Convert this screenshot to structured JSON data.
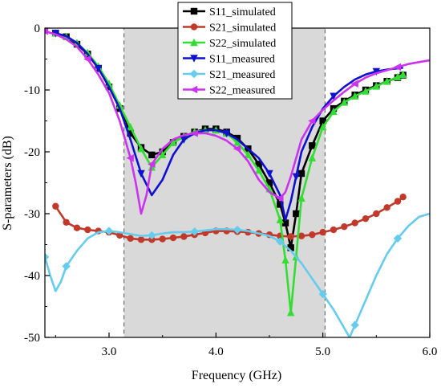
{
  "chart_data": {
    "type": "line",
    "xlabel": "Frequency (GHz)",
    "ylabel": "S-parameters (dB)",
    "xlim": [
      2.4,
      6.0
    ],
    "ylim": [
      -50,
      0
    ],
    "xticks": [
      3.0,
      4.0,
      5.0,
      6.0
    ],
    "xtick_labels": [
      "3.0",
      "4.0",
      "5.0",
      "6.0"
    ],
    "yticks": [
      0,
      -10,
      -20,
      -30,
      -40,
      -50
    ],
    "ytick_labels": [
      "0",
      "-10",
      "-20",
      "-30",
      "-40",
      "-50"
    ],
    "grid": false,
    "legend_position": "top-center",
    "shaded_band": {
      "x_range": [
        3.14,
        5.02
      ],
      "color": "#d9d9d9",
      "border": "dashed"
    },
    "series": [
      {
        "name": "S11_simulated",
        "color": "#000000",
        "marker": "square",
        "x": [
          2.5,
          2.6,
          2.7,
          2.8,
          2.9,
          3.0,
          3.1,
          3.2,
          3.3,
          3.4,
          3.5,
          3.6,
          3.7,
          3.8,
          3.9,
          4.0,
          4.1,
          4.2,
          4.3,
          4.4,
          4.5,
          4.6,
          4.65,
          4.7,
          4.75,
          4.8,
          4.9,
          5.0,
          5.1,
          5.2,
          5.3,
          5.4,
          5.5,
          5.6,
          5.7,
          5.75
        ],
        "y": [
          -0.8,
          -1.4,
          -2.6,
          -4.2,
          -6.5,
          -9.5,
          -13,
          -17,
          -19.3,
          -20.5,
          -20,
          -18.5,
          -17.5,
          -16.8,
          -16.3,
          -16.3,
          -16.8,
          -17.8,
          -19.5,
          -22,
          -25,
          -28.5,
          -31.5,
          -35.5,
          -30,
          -23.5,
          -19,
          -15,
          -13,
          -11.8,
          -10.8,
          -10,
          -9.3,
          -8.6,
          -8,
          -7.6
        ]
      },
      {
        "name": "S21_simulated",
        "color": "#c0392b",
        "marker": "circle",
        "x": [
          2.5,
          2.6,
          2.7,
          2.8,
          2.9,
          3.0,
          3.1,
          3.2,
          3.3,
          3.4,
          3.5,
          3.6,
          3.7,
          3.8,
          3.9,
          4.0,
          4.1,
          4.2,
          4.3,
          4.4,
          4.5,
          4.6,
          4.7,
          4.8,
          4.9,
          5.0,
          5.1,
          5.2,
          5.3,
          5.4,
          5.5,
          5.6,
          5.7,
          5.75
        ],
        "y": [
          -28.8,
          -31.4,
          -32.3,
          -32.6,
          -32.8,
          -33,
          -33.5,
          -34,
          -34.2,
          -34.2,
          -34.1,
          -33.9,
          -33.7,
          -33.4,
          -33.1,
          -32.8,
          -32.8,
          -32.9,
          -33,
          -33.2,
          -33.4,
          -33.6,
          -33.7,
          -33.6,
          -33.4,
          -33,
          -32.6,
          -32.1,
          -31.5,
          -30.8,
          -30,
          -29,
          -28,
          -27.3
        ]
      },
      {
        "name": "S22_simulated",
        "color": "#33dd33",
        "marker": "triangle-up",
        "x": [
          2.5,
          2.6,
          2.7,
          2.8,
          2.9,
          3.0,
          3.1,
          3.2,
          3.3,
          3.4,
          3.5,
          3.6,
          3.7,
          3.8,
          3.9,
          4.0,
          4.1,
          4.2,
          4.3,
          4.4,
          4.5,
          4.6,
          4.65,
          4.7,
          4.75,
          4.8,
          4.9,
          5.0,
          5.1,
          5.2,
          5.3,
          5.4,
          5.5,
          5.6,
          5.7,
          5.75
        ],
        "y": [
          -0.8,
          -1.4,
          -2.4,
          -4,
          -6.2,
          -9,
          -12.5,
          -16,
          -19.5,
          -22.5,
          -20.5,
          -18.5,
          -17.5,
          -16.8,
          -16.5,
          -16.5,
          -17,
          -18.5,
          -20.5,
          -23,
          -26,
          -31,
          -37.5,
          -46,
          -37,
          -27.5,
          -21,
          -16,
          -13.5,
          -12,
          -11,
          -10.2,
          -9.4,
          -8.6,
          -7.9,
          -7.5
        ]
      },
      {
        "name": "S11_measured",
        "color": "#1010d0",
        "marker": "triangle-down",
        "x": [
          2.5,
          2.6,
          2.7,
          2.8,
          2.9,
          3.0,
          3.1,
          3.2,
          3.3,
          3.4,
          3.5,
          3.6,
          3.7,
          3.8,
          3.9,
          4.0,
          4.1,
          4.2,
          4.3,
          4.4,
          4.5,
          4.6,
          4.65,
          4.7,
          4.75,
          4.8,
          4.9,
          5.0,
          5.1,
          5.2,
          5.3,
          5.4,
          5.5,
          5.6,
          5.7,
          5.75
        ],
        "y": [
          -0.8,
          -1.3,
          -2.4,
          -4.2,
          -6.5,
          -9.5,
          -13,
          -18,
          -23.5,
          -27,
          -24.5,
          -20.5,
          -18,
          -17,
          -16.5,
          -16.5,
          -17,
          -18,
          -19.5,
          -21,
          -23.5,
          -27,
          -31,
          -28,
          -24,
          -20,
          -16,
          -13,
          -11,
          -9.5,
          -8.3,
          -7.5,
          -7,
          -6.7,
          -6.5,
          -6.4
        ]
      },
      {
        "name": "S21_measured",
        "color": "#66ccee",
        "marker": "diamond",
        "x": [
          2.4,
          2.45,
          2.5,
          2.55,
          2.6,
          2.7,
          2.8,
          2.9,
          3.0,
          3.1,
          3.2,
          3.3,
          3.4,
          3.5,
          3.6,
          3.7,
          3.8,
          3.9,
          4.0,
          4.1,
          4.2,
          4.3,
          4.4,
          4.5,
          4.6,
          4.7,
          4.8,
          4.9,
          5.0,
          5.1,
          5.2,
          5.25,
          5.3,
          5.4,
          5.5,
          5.6,
          5.7,
          5.8,
          5.9,
          6.0
        ],
        "y": [
          -37,
          -40,
          -42.5,
          -41,
          -38.5,
          -36,
          -34,
          -33,
          -32.8,
          -33,
          -33.3,
          -33.6,
          -33.5,
          -33.2,
          -33,
          -33,
          -32.9,
          -32.7,
          -32.5,
          -32.5,
          -32.6,
          -32.8,
          -33.2,
          -33.6,
          -34.5,
          -36,
          -38,
          -40.5,
          -43,
          -45.5,
          -48.5,
          -50,
          -48,
          -44,
          -40,
          -36.5,
          -34,
          -32,
          -30.5,
          -30
        ]
      },
      {
        "name": "S22_measured",
        "color": "#cc33ee",
        "marker": "triangle-left",
        "x": [
          2.4,
          2.5,
          2.6,
          2.7,
          2.8,
          2.9,
          3.0,
          3.1,
          3.2,
          3.25,
          3.3,
          3.35,
          3.4,
          3.5,
          3.6,
          3.7,
          3.8,
          3.9,
          4.0,
          4.1,
          4.2,
          4.3,
          4.4,
          4.5,
          4.6,
          4.65,
          4.7,
          4.8,
          4.9,
          5.0,
          5.1,
          5.2,
          5.3,
          5.4,
          5.5,
          5.6,
          5.7,
          5.8,
          5.9,
          6.0
        ],
        "y": [
          -0.5,
          -1,
          -1.8,
          -3,
          -5,
          -7.5,
          -10.5,
          -15,
          -21,
          -25,
          -30,
          -27,
          -22,
          -19.5,
          -18,
          -17.3,
          -17,
          -17,
          -17.4,
          -18.2,
          -19.5,
          -21.5,
          -24.5,
          -26.5,
          -27.5,
          -26.5,
          -24,
          -18,
          -15,
          -13.2,
          -11.7,
          -10.3,
          -9,
          -8,
          -7.3,
          -6.8,
          -6.3,
          -5.8,
          -5.5,
          -5.2
        ]
      }
    ]
  }
}
